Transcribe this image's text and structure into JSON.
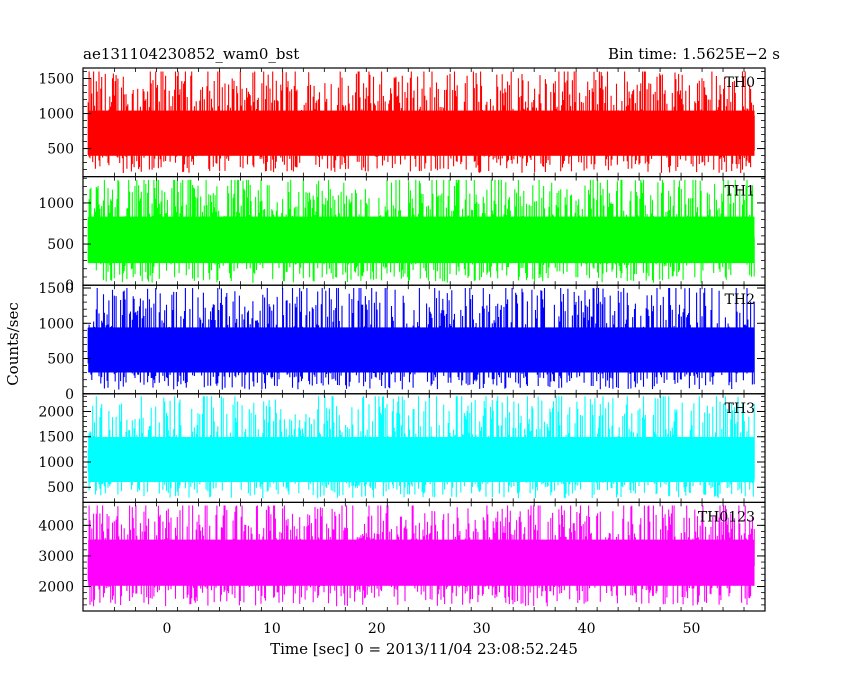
{
  "chart_data": {
    "type": "line",
    "title_left": "ae131104230852_wam0_bst",
    "title_right": "Bin time: 1.5625E−2 s",
    "xlabel": "Time [sec] 0 = 2013/11/04 23:08:52.245",
    "ylabel": "Counts/sec",
    "xlim": [
      -8,
      57
    ],
    "x_ticks": [
      0,
      10,
      20,
      30,
      40,
      50
    ],
    "x_data_range": [
      -7.5,
      56
    ],
    "panels": [
      {
        "name": "TH0",
        "color": "#ff0000",
        "ylim": [
          100,
          1650
        ],
        "y_ticks": [
          500,
          1000,
          1500
        ],
        "baseline": 700,
        "floor": 150,
        "peak": 1600
      },
      {
        "name": "TH1",
        "color": "#00ff00",
        "ylim": [
          0,
          1320
        ],
        "y_ticks": [
          0,
          500,
          1000
        ],
        "baseline": 560,
        "floor": 30,
        "peak": 1280
      },
      {
        "name": "TH2",
        "color": "#0000ff",
        "ylim": [
          0,
          1540
        ],
        "y_ticks": [
          0,
          500,
          1000,
          1500
        ],
        "baseline": 600,
        "floor": 60,
        "peak": 1500
      },
      {
        "name": "TH3",
        "color": "#00ffff",
        "ylim": [
          200,
          2350
        ],
        "y_ticks": [
          500,
          1000,
          1500,
          2000
        ],
        "baseline": 1000,
        "floor": 280,
        "peak": 2300
      },
      {
        "name": "TH0123",
        "color": "#ff00ff",
        "ylim": [
          1200,
          4750
        ],
        "y_ticks": [
          2000,
          3000,
          4000
        ],
        "baseline": 2850,
        "floor": 1350,
        "peak": 4650
      }
    ]
  }
}
